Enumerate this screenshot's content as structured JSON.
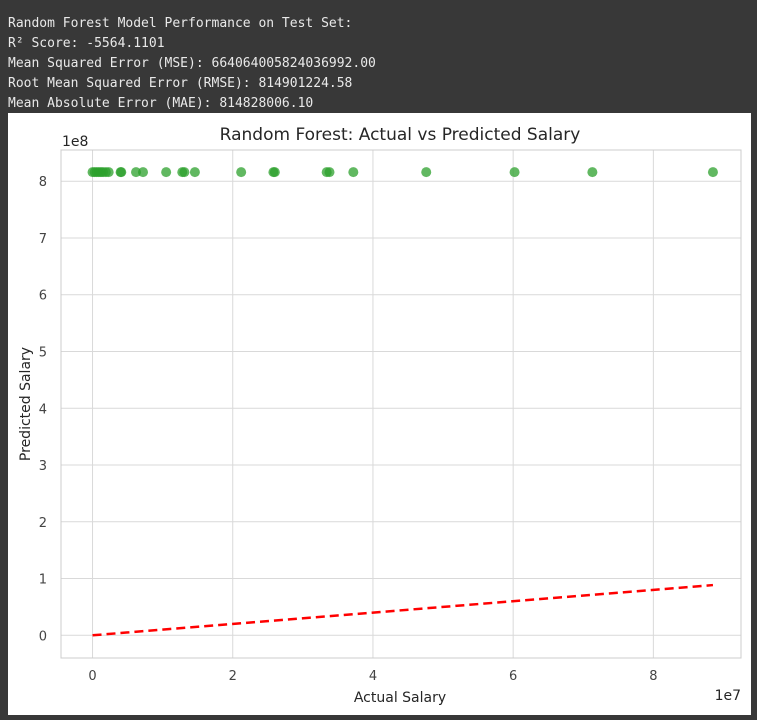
{
  "console": {
    "lines": [
      "Random Forest Model Performance on Test Set:",
      "R² Score: -5564.1101",
      "Mean Squared Error (MSE): 664064005824036992.00",
      "Root Mean Squared Error (RMSE): 814901224.58",
      "Mean Absolute Error (MAE): 814828006.10"
    ]
  },
  "chart_data": {
    "type": "scatter",
    "title": "Random Forest: Actual vs Predicted Salary",
    "xlabel": "Actual Salary",
    "ylabel": "Predicted Salary",
    "x_offset_label": "1e7",
    "y_offset_label": "1e8",
    "x_scale": 10000000,
    "y_scale": 100000000,
    "xlim": [
      -0.45,
      9.25
    ],
    "ylim": [
      -0.4,
      8.55
    ],
    "x_ticks": [
      0,
      2,
      4,
      6,
      8
    ],
    "y_ticks": [
      0,
      1,
      2,
      3,
      4,
      5,
      6,
      7,
      8
    ],
    "grid": true,
    "series": [
      {
        "kind": "scatter",
        "color": "#2ca02c",
        "points": [
          {
            "x": 0.0,
            "y": 8.16
          },
          {
            "x": 0.03,
            "y": 8.16
          },
          {
            "x": 0.06,
            "y": 8.16
          },
          {
            "x": 0.09,
            "y": 8.16
          },
          {
            "x": 0.12,
            "y": 8.16
          },
          {
            "x": 0.15,
            "y": 8.16
          },
          {
            "x": 0.19,
            "y": 8.16
          },
          {
            "x": 0.23,
            "y": 8.16
          },
          {
            "x": 0.4,
            "y": 8.16
          },
          {
            "x": 0.41,
            "y": 8.16
          },
          {
            "x": 0.62,
            "y": 8.16
          },
          {
            "x": 0.72,
            "y": 8.16
          },
          {
            "x": 1.05,
            "y": 8.16
          },
          {
            "x": 1.28,
            "y": 8.16
          },
          {
            "x": 1.31,
            "y": 8.16
          },
          {
            "x": 1.46,
            "y": 8.16
          },
          {
            "x": 2.12,
            "y": 8.16
          },
          {
            "x": 2.58,
            "y": 8.16
          },
          {
            "x": 2.6,
            "y": 8.16
          },
          {
            "x": 3.34,
            "y": 8.16
          },
          {
            "x": 3.38,
            "y": 8.16
          },
          {
            "x": 3.72,
            "y": 8.16
          },
          {
            "x": 4.76,
            "y": 8.16
          },
          {
            "x": 6.02,
            "y": 8.16
          },
          {
            "x": 7.13,
            "y": 8.16
          },
          {
            "x": 8.85,
            "y": 8.16
          }
        ]
      },
      {
        "kind": "line",
        "color": "#ff0000",
        "style": "dashed",
        "points": [
          {
            "x": 0.0,
            "y": 0.0
          },
          {
            "x": 8.85,
            "y": 0.885
          }
        ]
      }
    ]
  }
}
